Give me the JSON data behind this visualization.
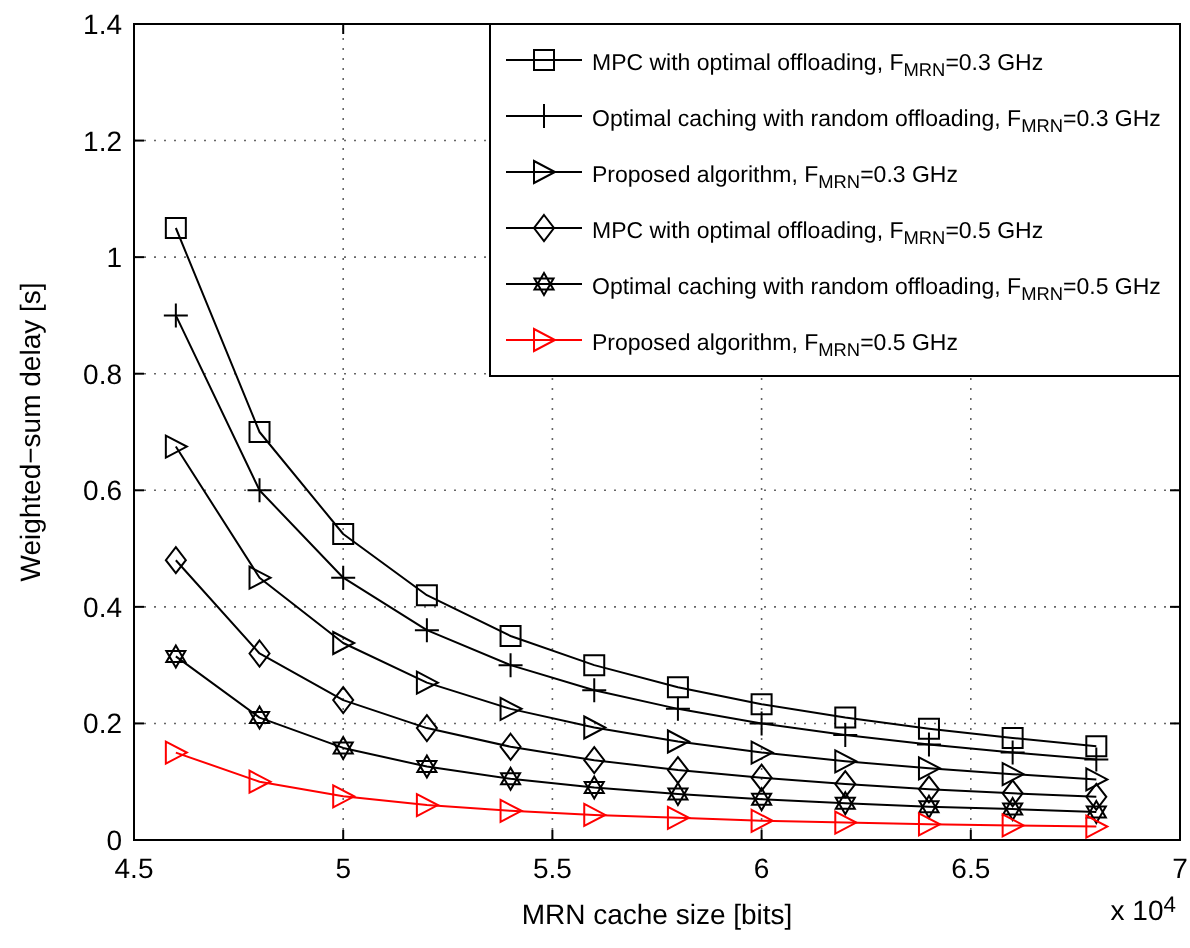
{
  "chart_data": {
    "type": "line",
    "xlabel": "MRN cache size [bits]",
    "ylabel": "Weighted−sum delay [s]",
    "x": [
      4.6,
      4.8,
      5.0,
      5.2,
      5.4,
      5.6,
      5.8,
      6.0,
      6.2,
      6.4,
      6.6,
      6.8
    ],
    "xlim": [
      4.5,
      7
    ],
    "xticks": [
      4.5,
      5,
      5.5,
      6,
      6.5,
      7
    ],
    "ylim": [
      0,
      1.4
    ],
    "yticks": [
      0,
      0.2,
      0.4,
      0.6,
      0.8,
      1,
      1.2,
      1.4
    ],
    "grid": true,
    "legend": "top right",
    "line_style": "solid",
    "annotations": [
      "x 10$^{4}$"
    ],
    "series": [
      {
        "name": "MPC with optimal offloading, F$_{MRN}$=0.3 GHz",
        "color": "#000000",
        "marker": "square",
        "values": [
          1.05,
          0.7,
          0.525,
          0.42,
          0.35,
          0.3,
          0.262,
          0.233,
          0.21,
          0.191,
          0.175,
          0.161
        ]
      },
      {
        "name": "Optimal caching with random offloading, F$_{MRN}$=0.3 GHz",
        "color": "#000000",
        "marker": "cross",
        "values": [
          0.9,
          0.6,
          0.45,
          0.36,
          0.3,
          0.257,
          0.225,
          0.2,
          0.18,
          0.164,
          0.15,
          0.138
        ]
      },
      {
        "name": "Proposed algorithm, F$_{MRN}$=0.3 GHz",
        "color": "#000000",
        "marker": "triangle",
        "values": [
          0.675,
          0.45,
          0.338,
          0.27,
          0.225,
          0.193,
          0.169,
          0.15,
          0.135,
          0.123,
          0.113,
          0.104
        ]
      },
      {
        "name": "MPC with optimal offloading, F$_{MRN}$=0.5 GHz",
        "color": "#000000",
        "marker": "diamond",
        "values": [
          0.48,
          0.32,
          0.24,
          0.192,
          0.16,
          0.137,
          0.12,
          0.107,
          0.096,
          0.087,
          0.08,
          0.074
        ]
      },
      {
        "name": "Optimal caching with random offloading, F$_{MRN}$=0.5 GHz",
        "color": "#000000",
        "marker": "star",
        "values": [
          0.315,
          0.21,
          0.158,
          0.126,
          0.105,
          0.09,
          0.079,
          0.07,
          0.063,
          0.057,
          0.053,
          0.048
        ]
      },
      {
        "name": "Proposed algorithm, F$_{MRN}$=0.5 GHz",
        "color": "#ff0000",
        "marker": "triangle",
        "values": [
          0.15,
          0.1,
          0.075,
          0.06,
          0.05,
          0.043,
          0.038,
          0.033,
          0.03,
          0.027,
          0.025,
          0.023
        ]
      }
    ]
  }
}
